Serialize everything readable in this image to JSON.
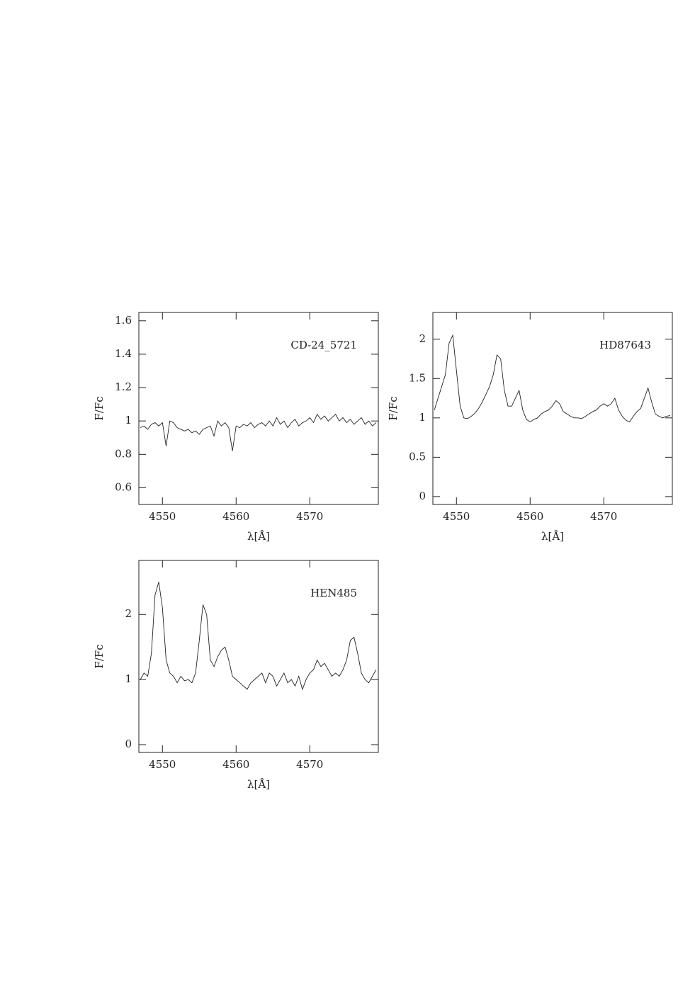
{
  "chart_data": [
    {
      "type": "line",
      "annotation": "CD-24_5721",
      "xlabel": "λ[Å]",
      "ylabel": "F/Fc",
      "xlim": [
        4546.8,
        4579.3
      ],
      "ylim": [
        0.5,
        1.65
      ],
      "xticks": [
        4550,
        4560,
        4570
      ],
      "yticks": [
        0.6,
        0.8,
        1,
        1.2,
        1.4,
        1.6
      ],
      "x": [
        4547,
        4547.5,
        4548,
        4548.5,
        4549,
        4549.5,
        4550,
        4550.5,
        4551,
        4551.5,
        4552,
        4552.5,
        4553,
        4553.5,
        4554,
        4554.5,
        4555,
        4555.5,
        4556,
        4556.5,
        4557,
        4557.5,
        4558,
        4558.5,
        4559,
        4559.5,
        4560,
        4560.5,
        4561,
        4561.5,
        4562,
        4562.5,
        4563,
        4563.5,
        4564,
        4564.5,
        4565,
        4565.5,
        4566,
        4566.5,
        4567,
        4567.5,
        4568,
        4568.5,
        4569,
        4569.5,
        4570,
        4570.5,
        4571,
        4571.5,
        4572,
        4572.5,
        4573,
        4573.5,
        4574,
        4574.5,
        4575,
        4575.5,
        4576,
        4576.5,
        4577,
        4577.5,
        4578,
        4578.5,
        4579
      ],
      "values": [
        0.96,
        0.97,
        0.95,
        0.98,
        0.99,
        0.97,
        0.99,
        0.85,
        1.0,
        0.99,
        0.96,
        0.95,
        0.94,
        0.95,
        0.93,
        0.94,
        0.92,
        0.95,
        0.96,
        0.97,
        0.91,
        1.0,
        0.97,
        0.99,
        0.96,
        0.82,
        0.97,
        0.96,
        0.98,
        0.97,
        0.99,
        0.96,
        0.98,
        0.99,
        0.97,
        1.0,
        0.97,
        1.02,
        0.98,
        1.0,
        0.96,
        0.99,
        1.01,
        0.97,
        0.99,
        1.0,
        1.02,
        0.99,
        1.04,
        1.01,
        1.03,
        1.0,
        1.02,
        1.04,
        1.0,
        1.02,
        0.99,
        1.01,
        0.98,
        1.0,
        1.02,
        0.98,
        1.0,
        0.97,
        0.99
      ]
    },
    {
      "type": "line",
      "annotation": "HD87643",
      "xlabel": "λ[Å]",
      "ylabel": "F/Fc",
      "xlim": [
        4546.8,
        4579.3
      ],
      "ylim": [
        -0.1,
        2.34
      ],
      "xticks": [
        4550,
        4560,
        4570
      ],
      "yticks": [
        0,
        0.5,
        1,
        1.5,
        2
      ],
      "x": [
        4547,
        4547.5,
        4548,
        4548.5,
        4549,
        4549.5,
        4550,
        4550.5,
        4551,
        4551.5,
        4552,
        4552.5,
        4553,
        4553.5,
        4554,
        4554.5,
        4555,
        4555.5,
        4556,
        4556.5,
        4557,
        4557.5,
        4558,
        4558.5,
        4559,
        4559.5,
        4560,
        4560.5,
        4561,
        4561.5,
        4562,
        4562.5,
        4563,
        4563.5,
        4564,
        4564.5,
        4565,
        4565.5,
        4566,
        4566.5,
        4567,
        4567.5,
        4568,
        4568.5,
        4569,
        4569.5,
        4570,
        4570.5,
        4571,
        4571.5,
        4572,
        4572.5,
        4573,
        4573.5,
        4574,
        4574.5,
        4575,
        4575.5,
        4576,
        4576.5,
        4577,
        4577.5,
        4578,
        4578.5,
        4579
      ],
      "values": [
        1.1,
        1.25,
        1.4,
        1.55,
        1.95,
        2.05,
        1.6,
        1.15,
        1.0,
        0.99,
        1.02,
        1.06,
        1.12,
        1.2,
        1.3,
        1.4,
        1.55,
        1.8,
        1.75,
        1.35,
        1.15,
        1.15,
        1.25,
        1.35,
        1.1,
        0.98,
        0.95,
        0.98,
        1.0,
        1.05,
        1.08,
        1.1,
        1.15,
        1.22,
        1.18,
        1.08,
        1.05,
        1.02,
        1.0,
        1.0,
        0.99,
        1.02,
        1.05,
        1.08,
        1.1,
        1.15,
        1.18,
        1.15,
        1.18,
        1.25,
        1.1,
        1.02,
        0.97,
        0.95,
        1.02,
        1.08,
        1.12,
        1.25,
        1.38,
        1.2,
        1.05,
        1.02,
        1.0,
        1.02,
        1.03
      ]
    },
    {
      "type": "line",
      "annotation": "HEN485",
      "xlabel": "λ[Å]",
      "ylabel": "F/Fc",
      "xlim": [
        4546.8,
        4579.3
      ],
      "ylim": [
        -0.12,
        2.83
      ],
      "xticks": [
        4550,
        4560,
        4570
      ],
      "yticks": [
        0,
        1,
        2
      ],
      "x": [
        4547,
        4547.5,
        4548,
        4548.5,
        4549,
        4549.5,
        4550,
        4550.5,
        4551,
        4551.5,
        4552,
        4552.5,
        4553,
        4553.5,
        4554,
        4554.5,
        4555,
        4555.5,
        4556,
        4556.5,
        4557,
        4557.5,
        4558,
        4558.5,
        4559,
        4559.5,
        4560,
        4560.5,
        4561,
        4561.5,
        4562,
        4562.5,
        4563,
        4563.5,
        4564,
        4564.5,
        4565,
        4565.5,
        4566,
        4566.5,
        4567,
        4567.5,
        4568,
        4568.5,
        4569,
        4569.5,
        4570,
        4570.5,
        4571,
        4571.5,
        4572,
        4572.5,
        4573,
        4573.5,
        4574,
        4574.5,
        4575,
        4575.5,
        4576,
        4576.5,
        4577,
        4577.5,
        4578,
        4578.5,
        4579
      ],
      "values": [
        1.0,
        1.1,
        1.05,
        1.4,
        2.3,
        2.5,
        2.1,
        1.3,
        1.1,
        1.05,
        0.95,
        1.05,
        0.98,
        1.0,
        0.95,
        1.1,
        1.6,
        2.15,
        2.0,
        1.3,
        1.2,
        1.35,
        1.45,
        1.5,
        1.3,
        1.05,
        1.0,
        0.95,
        0.9,
        0.85,
        0.95,
        1.0,
        1.05,
        1.1,
        0.95,
        1.1,
        1.05,
        0.9,
        1.0,
        1.1,
        0.95,
        1.0,
        0.9,
        1.05,
        0.85,
        1.0,
        1.1,
        1.15,
        1.3,
        1.2,
        1.25,
        1.15,
        1.05,
        1.1,
        1.05,
        1.15,
        1.3,
        1.6,
        1.65,
        1.4,
        1.1,
        1.0,
        0.95,
        1.05,
        1.15
      ]
    }
  ]
}
